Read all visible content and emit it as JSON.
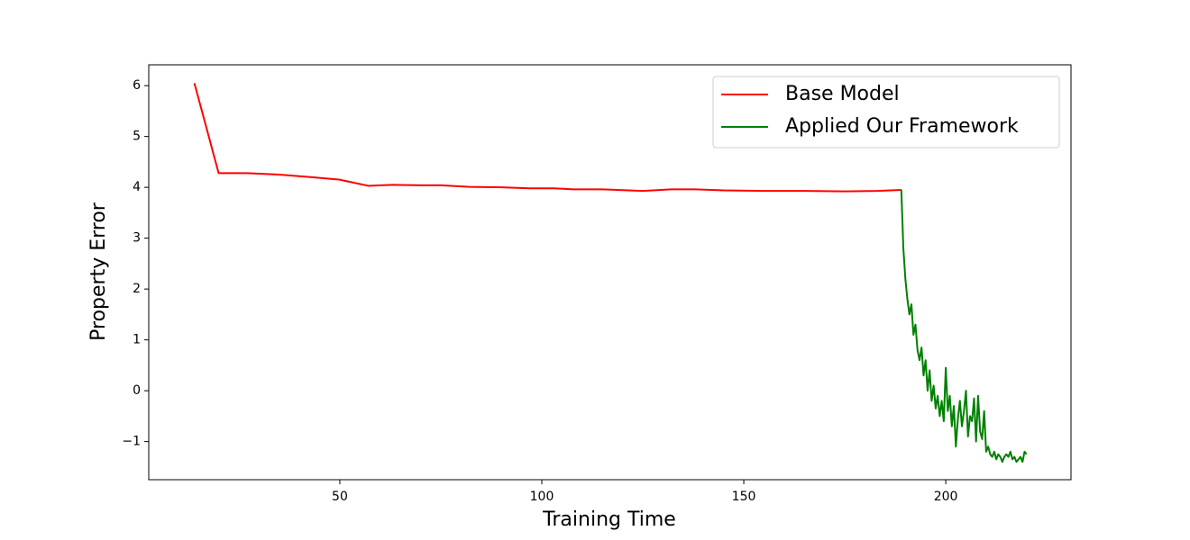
{
  "chart_data": {
    "type": "line",
    "xlabel": "Training Time",
    "ylabel": "Property Error",
    "xlim": [
      2.7,
      231
    ],
    "ylim": [
      -1.75,
      6.41
    ],
    "xticks": [
      50,
      100,
      150,
      200
    ],
    "yticks": [
      {
        "value": -1,
        "label": "−1"
      },
      0,
      1,
      2,
      3,
      4,
      5,
      6
    ],
    "legend": "upper right",
    "series": [
      {
        "name": "Base Model",
        "color": "#ff0000",
        "x": [
          14,
          20,
          27,
          35,
          43,
          50,
          57,
          63,
          70,
          75,
          82,
          90,
          97,
          103,
          108,
          115,
          125,
          132,
          138,
          145,
          155,
          165,
          175,
          183,
          189
        ],
        "values": [
          6.05,
          4.28,
          4.28,
          4.25,
          4.2,
          4.15,
          4.03,
          4.05,
          4.04,
          4.04,
          4.01,
          4.0,
          3.98,
          3.98,
          3.96,
          3.96,
          3.93,
          3.96,
          3.96,
          3.94,
          3.93,
          3.93,
          3.92,
          3.93,
          3.95
        ]
      },
      {
        "name": "Applied Our Framework",
        "color": "#008000",
        "x": [
          189,
          189.5,
          190,
          190.5,
          191,
          191.5,
          192,
          192.5,
          193,
          193.5,
          194,
          194.5,
          195,
          195.5,
          196,
          196.5,
          197,
          197.5,
          198,
          198.5,
          199,
          199.5,
          200,
          200.5,
          201,
          201.5,
          202,
          202.5,
          203,
          203.5,
          204,
          204.5,
          205,
          205.5,
          206,
          206.5,
          207,
          207.5,
          208,
          208.5,
          209,
          209.5,
          210,
          210.5,
          211,
          211.5,
          212,
          212.5,
          213,
          213.5,
          214,
          214.5,
          215,
          215.5,
          216,
          216.5,
          217,
          217.5,
          218,
          218.5,
          219,
          219.5,
          220
        ],
        "values": [
          3.95,
          2.8,
          2.2,
          1.8,
          1.5,
          1.7,
          1.1,
          1.3,
          0.8,
          0.6,
          0.85,
          0.3,
          0.6,
          0.0,
          0.4,
          -0.2,
          0.1,
          -0.35,
          -0.1,
          -0.5,
          -0.2,
          -0.6,
          0.45,
          -0.4,
          -0.1,
          -0.7,
          -0.3,
          -1.1,
          -0.55,
          -0.2,
          -0.7,
          -0.4,
          0.0,
          -0.9,
          -0.5,
          -0.6,
          -0.15,
          -1.0,
          -0.1,
          -0.8,
          -0.95,
          -0.4,
          -1.2,
          -1.1,
          -1.25,
          -1.3,
          -1.2,
          -1.35,
          -1.25,
          -1.3,
          -1.4,
          -1.3,
          -1.25,
          -1.3,
          -1.2,
          -1.35,
          -1.3,
          -1.4,
          -1.35,
          -1.3,
          -1.4,
          -1.2,
          -1.25
        ]
      }
    ]
  }
}
